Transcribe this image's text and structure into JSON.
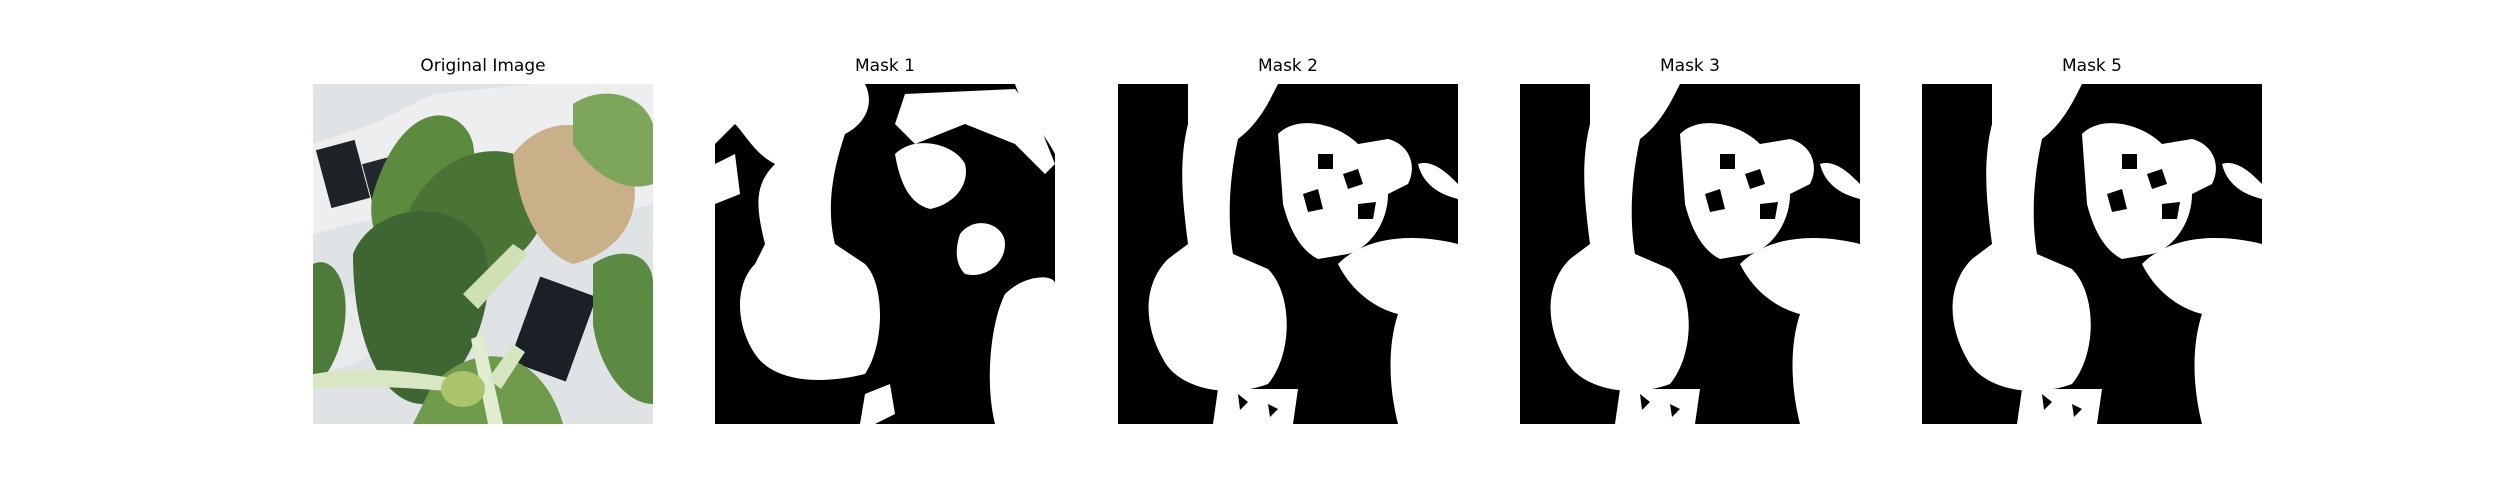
{
  "figure": {
    "panels": [
      {
        "title": "Original Image",
        "kind": "photo"
      },
      {
        "title": "Mask 1",
        "kind": "mask"
      },
      {
        "title": "Mask 2",
        "kind": "mask"
      },
      {
        "title": "Mask 3",
        "kind": "mask"
      },
      {
        "title": "Mask 5",
        "kind": "mask"
      }
    ],
    "colors": {
      "mask_foreground": "#ffffff",
      "mask_background": "#000000",
      "leaf_dark": "#3f6a35",
      "leaf_light": "#7fa35a",
      "leaf_dry": "#c8b08a",
      "pot_white": "#e6e8ea",
      "pot_slot": "#1e2328"
    }
  }
}
